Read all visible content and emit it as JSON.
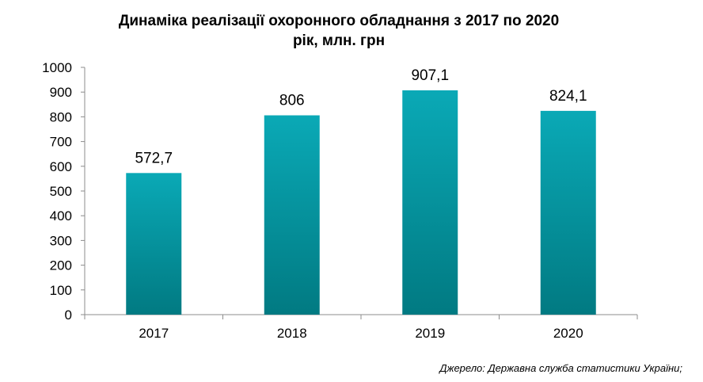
{
  "chart_data": {
    "type": "bar",
    "title_line1": "Динаміка  реалізації  охоронного  обладнання  з 2017 по 2020",
    "title_line2": "рік, млн. грн",
    "categories": [
      "2017",
      "2018",
      "2019",
      "2020"
    ],
    "values": [
      572.7,
      806,
      907.1,
      824.1
    ],
    "value_labels": [
      "572,7",
      "806",
      "907,1",
      "824,1"
    ],
    "yticks": [
      0,
      100,
      200,
      300,
      400,
      500,
      600,
      700,
      800,
      900,
      1000
    ],
    "ylim": [
      0,
      1000
    ],
    "grid": false,
    "legend": "none",
    "bar_color_top": "#0aa9b6",
    "bar_color_bottom": "#017a82"
  },
  "source_text": "Джерело: Державна служба статистики України;"
}
